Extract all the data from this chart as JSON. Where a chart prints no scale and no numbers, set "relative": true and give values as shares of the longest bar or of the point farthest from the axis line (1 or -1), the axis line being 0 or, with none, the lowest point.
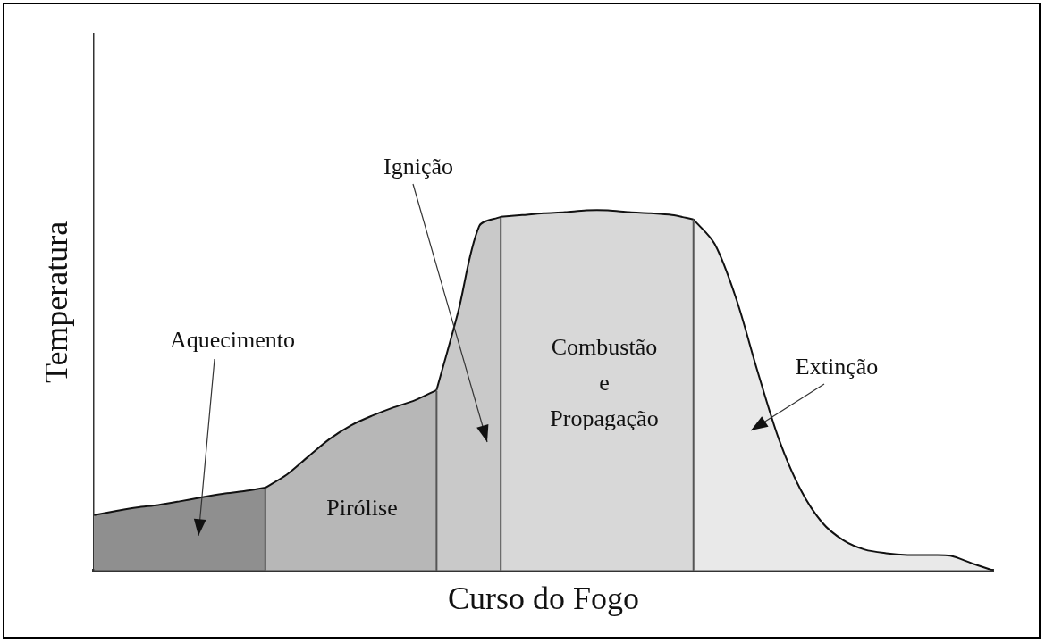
{
  "chart_data": {
    "type": "area",
    "relative": true,
    "xlabel": "Curso do Fogo",
    "ylabel": "Temperatura",
    "tick_labels": false,
    "grid": false,
    "legend": false,
    "categories": [
      null,
      null,
      null,
      null,
      null,
      null,
      null,
      null,
      null,
      null,
      null,
      null,
      null,
      null,
      null,
      null,
      null,
      null,
      null,
      null,
      null,
      null,
      null,
      null,
      null,
      null,
      null,
      null,
      null,
      null,
      null,
      null,
      null,
      null,
      null,
      null,
      null,
      null,
      null,
      null,
      null,
      null,
      null
    ],
    "series": [
      {
        "color": "#8f8f8f",
        "values": [
          0.154,
          0.165,
          0.175,
          0.182,
          0.192,
          0.203,
          0.213,
          0.22,
          0.23,
          null,
          null,
          null,
          null,
          null,
          null,
          null,
          null,
          null,
          null,
          null,
          null,
          null,
          null,
          null,
          null,
          null,
          null,
          null,
          null,
          null,
          null,
          null,
          null,
          null,
          null,
          null,
          null,
          null,
          null,
          null,
          null,
          null,
          null
        ]
      },
      {
        "color": "#b7b7b7",
        "values": [
          null,
          null,
          null,
          null,
          null,
          null,
          null,
          null,
          0.23,
          0.266,
          0.316,
          0.365,
          0.403,
          0.43,
          0.453,
          0.473,
          0.501,
          null,
          null,
          null,
          null,
          null,
          null,
          null,
          null,
          null,
          null,
          null,
          null,
          null,
          null,
          null,
          null,
          null,
          null,
          null,
          null,
          null,
          null,
          null,
          null,
          null,
          null
        ]
      },
      {
        "color": "#c9c9c9",
        "values": [
          null,
          null,
          null,
          null,
          null,
          null,
          null,
          null,
          null,
          null,
          null,
          null,
          null,
          null,
          null,
          null,
          0.501,
          0.716,
          0.957,
          0.982,
          null,
          null,
          null,
          null,
          null,
          null,
          null,
          null,
          null,
          null,
          null,
          null,
          null,
          null,
          null,
          null,
          null,
          null,
          null,
          null,
          null,
          null,
          null
        ]
      },
      {
        "color": "#d8d8d8",
        "values": [
          null,
          null,
          null,
          null,
          null,
          null,
          null,
          null,
          null,
          null,
          null,
          null,
          null,
          null,
          null,
          null,
          null,
          null,
          null,
          0.982,
          0.987,
          0.992,
          0.995,
          1,
          1,
          0.995,
          0.992,
          0.987,
          0.975,
          null,
          null,
          null,
          null,
          null,
          null,
          null,
          null,
          null,
          null,
          null,
          null,
          null,
          null
        ]
      },
      {
        "color": "#e9e9e9",
        "values": [
          null,
          null,
          null,
          null,
          null,
          null,
          null,
          null,
          null,
          null,
          null,
          null,
          null,
          null,
          null,
          null,
          null,
          null,
          null,
          null,
          null,
          null,
          null,
          null,
          null,
          null,
          null,
          null,
          0.975,
          0.906,
          0.754,
          0.552,
          0.363,
          0.225,
          0.134,
          0.084,
          0.058,
          0.048,
          0.043,
          0.043,
          0.041,
          0.02,
          0
        ]
      }
    ],
    "annotations": [
      "Aquecimento",
      "Pirólise",
      "Ignição",
      "Combustão\ne\nPropagação",
      "Extinção"
    ]
  }
}
